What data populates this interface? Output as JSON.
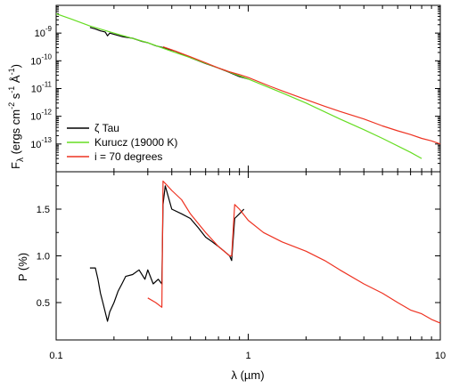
{
  "chart_data": [
    {
      "type": "line",
      "panel": "top",
      "xscale": "log",
      "yscale": "log",
      "xlim": [
        0.1,
        10
      ],
      "ylim": [
        1e-14,
        1e-08
      ],
      "xlabel": "",
      "ylabel": "Fλ (ergs cm⁻² s⁻¹ Å⁻¹)",
      "ylabel_parts": {
        "main": "F",
        "sub": "λ",
        "rest": " (ergs cm",
        "e1": "-2",
        "s": " s",
        "e2": "-1",
        "a": " Å",
        "e3": "-1",
        "close": ")"
      },
      "ytick_labels": [
        {
          "base": "10",
          "exp": "-9",
          "value": 1e-09
        },
        {
          "base": "10",
          "exp": "-10",
          "value": 1e-10
        },
        {
          "base": "10",
          "exp": "-11",
          "value": 1e-11
        },
        {
          "base": "10",
          "exp": "-12",
          "value": 1e-12
        },
        {
          "base": "10",
          "exp": "-13",
          "value": 1e-13
        }
      ],
      "legend_position": "bottom-left",
      "series": [
        {
          "name": "ζ Tau",
          "color": "#000000",
          "x": [
            0.15,
            0.16,
            0.17,
            0.18,
            0.185,
            0.19,
            0.2,
            0.22,
            0.25,
            0.28,
            0.3,
            0.33,
            0.36,
            0.38,
            0.42,
            0.5,
            0.6,
            0.7,
            0.75,
            0.8,
            0.85,
            0.9,
            1.0
          ],
          "y": [
            1.6e-09,
            1.4e-09,
            1.2e-09,
            1.1e-09,
            8e-10,
            1e-09,
            9e-10,
            7.5e-10,
            6.5e-10,
            5e-10,
            4.5e-10,
            3.5e-10,
            3e-10,
            2.7e-10,
            2.2e-10,
            1.3e-10,
            8e-11,
            5.5e-11,
            4.5e-11,
            3.8e-11,
            3.2e-11,
            2.7e-11,
            2.2e-11
          ]
        },
        {
          "name": "Kurucz (19000 K)",
          "color": "#66dd22",
          "x": [
            0.1,
            0.12,
            0.15,
            0.2,
            0.3,
            0.4,
            0.5,
            0.7,
            1.0,
            1.5,
            2.0,
            3.0,
            4.0,
            5.0,
            7.0,
            8.0
          ],
          "y": [
            5e-09,
            3.2e-09,
            1.8e-09,
            1e-09,
            4.5e-10,
            2.2e-10,
            1.3e-10,
            5.5e-11,
            2.2e-11,
            7e-12,
            3e-12,
            8e-13,
            3.3e-13,
            1.6e-13,
            5e-14,
            3e-14
          ]
        },
        {
          "name": "i = 70 degrees",
          "color": "#ee3322",
          "x": [
            0.36,
            0.4,
            0.5,
            0.6,
            0.7,
            0.8,
            0.9,
            1.0,
            1.3,
            1.6,
            2.0,
            2.5,
            3.0,
            4.0,
            5.0,
            6.0,
            7.0,
            8.0,
            9.0,
            10.0
          ],
          "y": [
            3.2e-10,
            2.5e-10,
            1.4e-10,
            8.5e-11,
            5.5e-11,
            4e-11,
            3.2e-11,
            2.5e-11,
            1.2e-11,
            7e-12,
            4e-12,
            2.3e-12,
            1.5e-12,
            8e-13,
            4.5e-13,
            3e-13,
            2.2e-13,
            1.6e-13,
            1.3e-13,
            1e-13
          ]
        }
      ]
    },
    {
      "type": "line",
      "panel": "bottom",
      "xscale": "log",
      "xlim": [
        0.1,
        10
      ],
      "ylim": [
        0.1,
        1.9
      ],
      "xlabel": "λ (µm)",
      "ylabel": "P (%)",
      "xtick_labels": [
        {
          "label": "0.1",
          "value": 0.1
        },
        {
          "label": "1",
          "value": 1
        },
        {
          "label": "10",
          "value": 10
        }
      ],
      "ytick_labels": [
        {
          "label": "0.5",
          "value": 0.5
        },
        {
          "label": "1.0",
          "value": 1.0
        },
        {
          "label": "1.5",
          "value": 1.5
        }
      ],
      "series": [
        {
          "name": "ζ Tau",
          "color": "#000000",
          "x": [
            0.15,
            0.16,
            0.165,
            0.17,
            0.175,
            0.18,
            0.185,
            0.19,
            0.2,
            0.21,
            0.22,
            0.23,
            0.25,
            0.27,
            0.29,
            0.3,
            0.32,
            0.34,
            0.355,
            0.36,
            0.37,
            0.4,
            0.45,
            0.5,
            0.55,
            0.6,
            0.65,
            0.7,
            0.75,
            0.8,
            0.82,
            0.85,
            0.9,
            0.95
          ],
          "y": [
            0.87,
            0.87,
            0.75,
            0.6,
            0.5,
            0.4,
            0.3,
            0.4,
            0.5,
            0.62,
            0.7,
            0.78,
            0.8,
            0.85,
            0.75,
            0.85,
            0.7,
            0.75,
            0.7,
            1.55,
            1.75,
            1.5,
            1.45,
            1.4,
            1.3,
            1.2,
            1.15,
            1.1,
            1.05,
            1.0,
            0.95,
            1.4,
            1.45,
            1.5
          ]
        },
        {
          "name": "i = 70 degrees",
          "color": "#ee3322",
          "x": [
            0.3,
            0.33,
            0.355,
            0.36,
            0.38,
            0.4,
            0.45,
            0.5,
            0.6,
            0.7,
            0.8,
            0.82,
            0.85,
            0.9,
            1.0,
            1.2,
            1.5,
            2.0,
            2.5,
            3.0,
            4.0,
            5.0,
            6.0,
            7.0,
            8.0,
            9.0,
            10.0
          ],
          "y": [
            0.55,
            0.5,
            0.45,
            1.8,
            1.75,
            1.7,
            1.6,
            1.45,
            1.25,
            1.1,
            1.0,
            1.0,
            1.55,
            1.5,
            1.38,
            1.25,
            1.15,
            1.05,
            0.95,
            0.85,
            0.7,
            0.6,
            0.5,
            0.42,
            0.38,
            0.32,
            0.28
          ]
        }
      ]
    }
  ]
}
